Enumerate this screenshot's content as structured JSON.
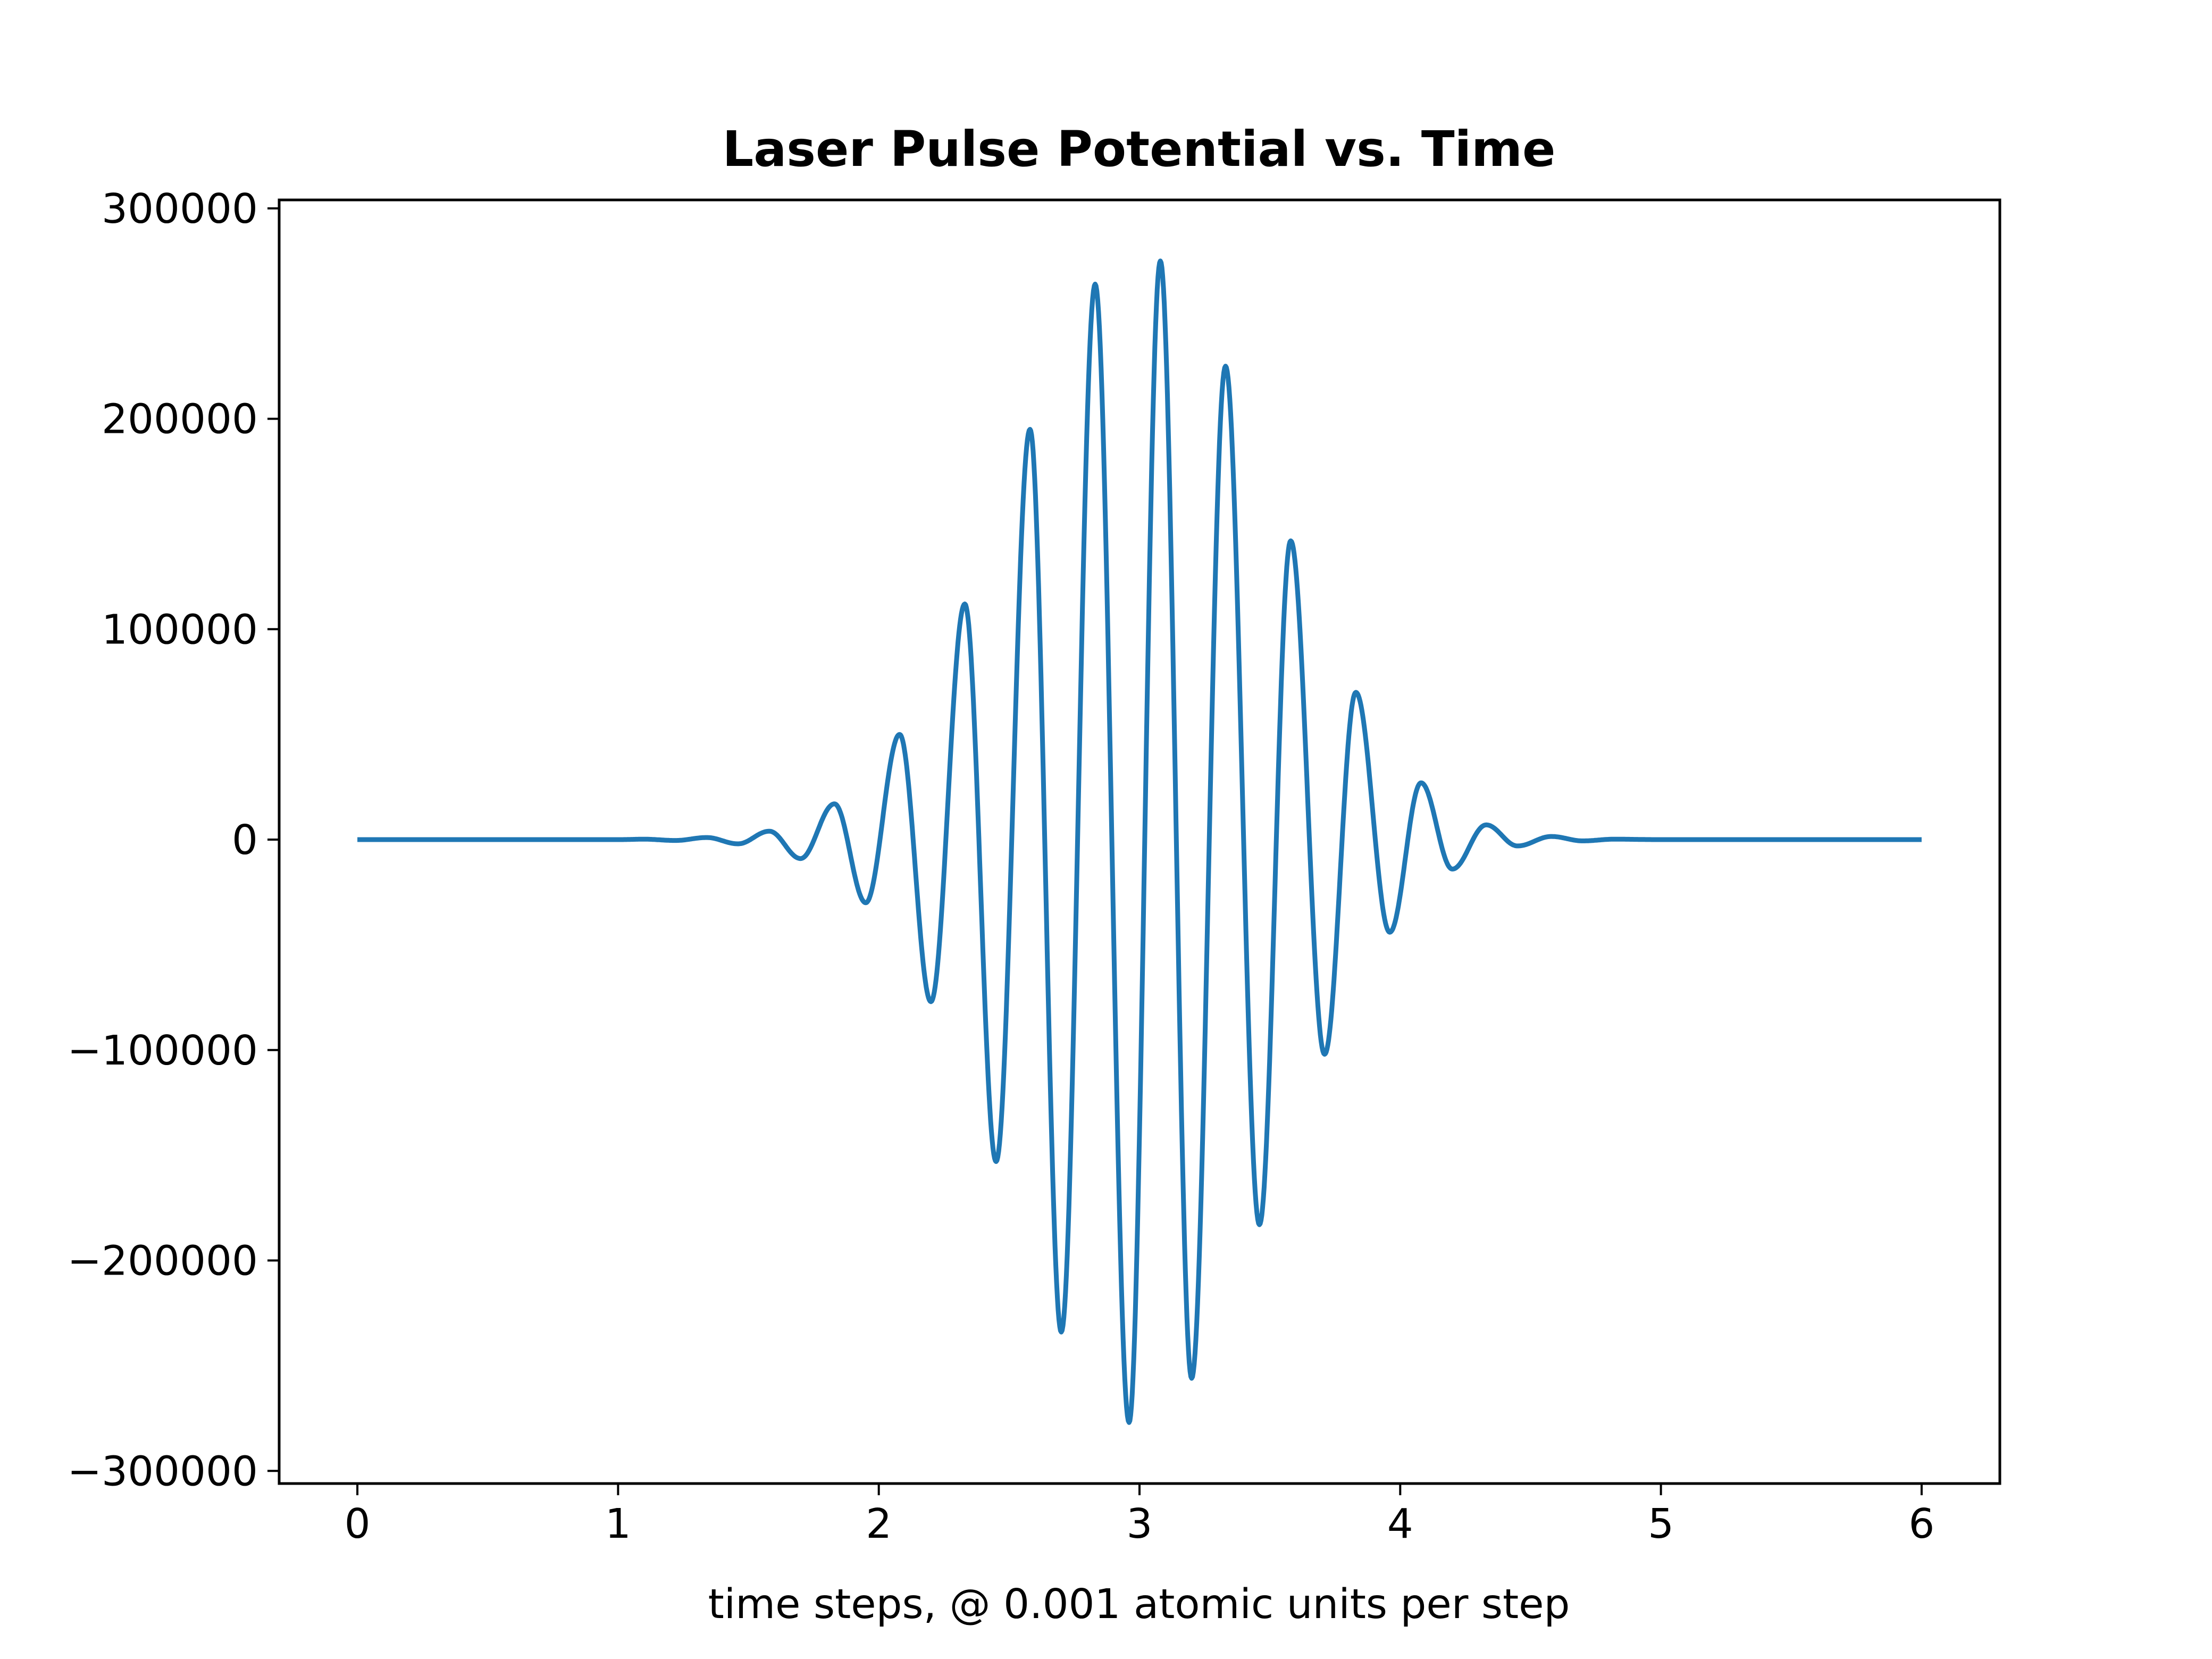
{
  "chart_data": {
    "type": "line",
    "title": "Laser Pulse Potential vs. Time",
    "xlabel": "time steps, @ 0.001 atomic units per step",
    "ylabel": "",
    "xlim": [
      -0.3,
      6.3
    ],
    "ylim": [
      -306000,
      304000
    ],
    "x_ticks": [
      0,
      1,
      2,
      3,
      4,
      5,
      6
    ],
    "x_tick_labels": [
      "0",
      "1",
      "2",
      "3",
      "4",
      "5",
      "6"
    ],
    "y_ticks": [
      -300000,
      -200000,
      -100000,
      0,
      100000,
      200000,
      300000
    ],
    "y_tick_labels": [
      "−300000",
      "−200000",
      "−100000",
      "0",
      "100000",
      "200000",
      "300000"
    ],
    "grid": false,
    "legend": "none",
    "series": [
      {
        "color": "#1f77b4",
        "x": [
          0,
          1.0,
          1.1,
          1.22,
          1.34,
          1.46,
          1.58,
          1.7,
          1.83,
          1.95,
          2.08,
          2.2,
          2.33,
          2.45,
          2.58,
          2.7,
          2.83,
          2.96,
          3.08,
          3.2,
          3.33,
          3.46,
          3.58,
          3.71,
          3.83,
          3.96,
          4.08,
          4.2,
          4.33,
          4.45,
          4.58,
          4.7,
          4.82,
          5.0,
          6.0
        ],
        "y": [
          0,
          0,
          200,
          -400,
          1000,
          -2000,
          4000,
          -9000,
          17000,
          -30000,
          50000,
          -77000,
          112000,
          -153000,
          195000,
          -234000,
          264000,
          -277000,
          275000,
          -256000,
          225000,
          -183000,
          142000,
          -102000,
          70000,
          -44000,
          27000,
          -14000,
          7000,
          -3000,
          1500,
          -600,
          200,
          0,
          0
        ]
      }
    ]
  }
}
